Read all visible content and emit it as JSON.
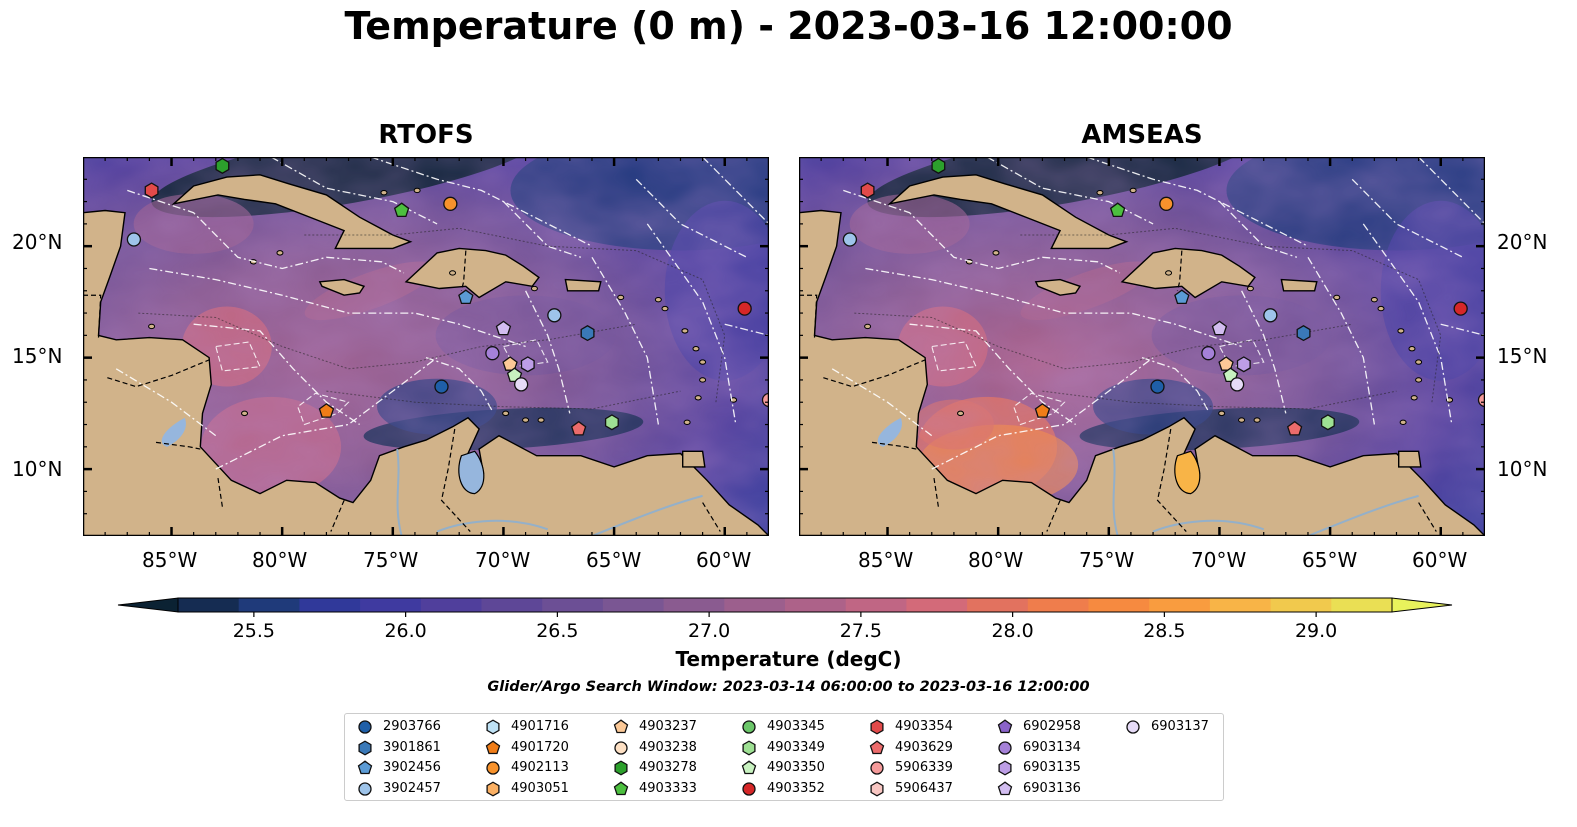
{
  "title": "Temperature (0 m) - 2023-03-16 12:00:00",
  "panels": [
    {
      "title": "RTOFS"
    },
    {
      "title": "AMSEAS"
    }
  ],
  "axes": {
    "lon_ticks": [
      "85°W",
      "80°W",
      "75°W",
      "70°W",
      "65°W",
      "60°W"
    ],
    "lat_ticks": [
      "20°N",
      "15°N",
      "10°N"
    ],
    "lon_range": [
      -89,
      -58
    ],
    "lat_range": [
      7,
      24
    ]
  },
  "colorbar": {
    "label": "Temperature (degC)",
    "ticks": [
      "25.5",
      "26.0",
      "26.5",
      "27.0",
      "27.5",
      "28.0",
      "28.5",
      "29.0"
    ],
    "range": [
      25.25,
      29.25
    ],
    "colors": [
      "#0b2233",
      "#152c52",
      "#1f3a7a",
      "#30399a",
      "#3f3aa0",
      "#503f9c",
      "#5e4797",
      "#6c4f95",
      "#7a5693",
      "#8a5b90",
      "#9c5f8d",
      "#ad6289",
      "#c06684",
      "#d36a79",
      "#e2725f",
      "#ef7d4c",
      "#f68a40",
      "#f99c3f",
      "#f8b447",
      "#f1c94d",
      "#eadf54",
      "#e8f25c"
    ]
  },
  "colors": {
    "land": "#d1b38a",
    "ocean_fill": "#96b6dd",
    "river": "#94b0c9"
  },
  "search_window": "Glider/Argo Search Window: 2023-03-14 06:00:00 to 2023-03-16 12:00:00",
  "legend": [
    {
      "id": "2903766",
      "marker": "circle",
      "color": "#1f5fa8"
    },
    {
      "id": "3901861",
      "marker": "hexagon",
      "color": "#3a79b8"
    },
    {
      "id": "3902456",
      "marker": "pentagon",
      "color": "#5b9bd5"
    },
    {
      "id": "3902457",
      "marker": "circle",
      "color": "#9ec4ea"
    },
    {
      "id": "4901716",
      "marker": "hexagon",
      "color": "#bfe2f5"
    },
    {
      "id": "4901720",
      "marker": "pentagon",
      "color": "#f07d18"
    },
    {
      "id": "4902113",
      "marker": "circle",
      "color": "#f7922c"
    },
    {
      "id": "4903051",
      "marker": "hexagon",
      "color": "#fbb063"
    },
    {
      "id": "4903237",
      "marker": "pentagon",
      "color": "#fcc997"
    },
    {
      "id": "4903238",
      "marker": "circle",
      "color": "#fde0c4"
    },
    {
      "id": "4903278",
      "marker": "hexagon",
      "color": "#2ca02c"
    },
    {
      "id": "4903333",
      "marker": "pentagon",
      "color": "#4cbf3f"
    },
    {
      "id": "4903345",
      "marker": "circle",
      "color": "#6cc76a"
    },
    {
      "id": "4903349",
      "marker": "hexagon",
      "color": "#9ee093"
    },
    {
      "id": "4903350",
      "marker": "pentagon",
      "color": "#c8f2c0"
    },
    {
      "id": "4903352",
      "marker": "circle",
      "color": "#d62728"
    },
    {
      "id": "4903354",
      "marker": "hexagon",
      "color": "#e24a4a"
    },
    {
      "id": "4903629",
      "marker": "pentagon",
      "color": "#ec6b6b"
    },
    {
      "id": "5906339",
      "marker": "circle",
      "color": "#f59a9a"
    },
    {
      "id": "5906437",
      "marker": "hexagon",
      "color": "#f8c6c2"
    },
    {
      "id": "6902958",
      "marker": "pentagon",
      "color": "#8a63c9"
    },
    {
      "id": "6903134",
      "marker": "circle",
      "color": "#a581d8"
    },
    {
      "id": "6903135",
      "marker": "hexagon",
      "color": "#bd9ee6"
    },
    {
      "id": "6903136",
      "marker": "pentagon",
      "color": "#d2bdf0"
    },
    {
      "id": "6903137",
      "marker": "circle",
      "color": "#e6dbf7"
    }
  ],
  "floats": [
    {
      "id": "3902457",
      "lon": -86.7,
      "lat": 20.3
    },
    {
      "id": "4903354",
      "lon": -85.9,
      "lat": 22.5
    },
    {
      "id": "4903278",
      "lon": -82.7,
      "lat": 23.6
    },
    {
      "id": "4903333",
      "lon": -74.6,
      "lat": 21.6
    },
    {
      "id": "4902113",
      "lon": -72.4,
      "lat": 21.9
    },
    {
      "id": "3902456",
      "lon": -71.7,
      "lat": 17.7
    },
    {
      "id": "4901720",
      "lon": -78.0,
      "lat": 12.6
    },
    {
      "id": "2903766",
      "lon": -72.8,
      "lat": 13.7
    },
    {
      "id": "6903136",
      "lon": -70.0,
      "lat": 16.3
    },
    {
      "id": "6903134",
      "lon": -70.5,
      "lat": 15.2
    },
    {
      "id": "4903237",
      "lon": -69.7,
      "lat": 14.7
    },
    {
      "id": "6903135",
      "lon": -68.9,
      "lat": 14.7
    },
    {
      "id": "4903350",
      "lon": -69.5,
      "lat": 14.2
    },
    {
      "id": "6903137",
      "lon": -69.2,
      "lat": 13.8
    },
    {
      "id": "3902457",
      "lon": -67.7,
      "lat": 16.9
    },
    {
      "id": "3901861",
      "lon": -66.2,
      "lat": 16.1
    },
    {
      "id": "4903629",
      "lon": -66.6,
      "lat": 11.8
    },
    {
      "id": "4903349",
      "lon": -65.1,
      "lat": 12.1
    },
    {
      "id": "4903352",
      "lon": -59.1,
      "lat": 17.2
    },
    {
      "id": "5906339",
      "lon": -58.0,
      "lat": 13.1
    }
  ]
}
